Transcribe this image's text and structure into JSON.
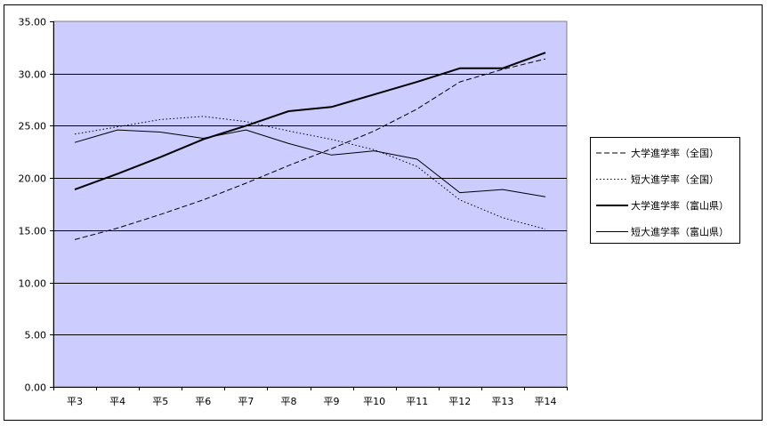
{
  "chart_data": {
    "type": "line",
    "title": "",
    "xlabel": "",
    "ylabel": "",
    "categories": [
      "平3",
      "平4",
      "平5",
      "平6",
      "平7",
      "平8",
      "平9",
      "平10",
      "平11",
      "平12",
      "平13",
      "平14"
    ],
    "ylim": [
      0,
      35
    ],
    "yticks": [
      "0.00",
      "5.00",
      "10.00",
      "15.00",
      "20.00",
      "25.00",
      "30.00",
      "35.00"
    ],
    "grid": true,
    "legend_position": "right",
    "plot_background": "#ccccff",
    "series": [
      {
        "name": "大学進学率（全国）",
        "style": "dashed",
        "width": 1,
        "color": "#000000",
        "values": [
          14.1,
          15.2,
          16.5,
          17.9,
          19.5,
          21.2,
          22.8,
          24.5,
          26.6,
          29.2,
          30.4,
          31.4
        ]
      },
      {
        "name": "短大進学率（全国）",
        "style": "dotted",
        "width": 1,
        "color": "#000000",
        "values": [
          24.2,
          24.9,
          25.6,
          25.9,
          25.4,
          24.5,
          23.7,
          22.7,
          21.1,
          17.9,
          16.2,
          15.1
        ]
      },
      {
        "name": "大学進学率（富山県）",
        "style": "solid",
        "width": 2,
        "color": "#000000",
        "values": [
          18.9,
          20.4,
          22.0,
          23.7,
          25.0,
          26.4,
          26.8,
          28.0,
          29.2,
          30.5,
          30.5,
          32.0
        ]
      },
      {
        "name": "短大進学率（富山県）",
        "style": "solid",
        "width": 1,
        "color": "#000000",
        "values": [
          23.4,
          24.6,
          24.4,
          23.8,
          24.6,
          23.3,
          22.2,
          22.6,
          21.8,
          18.6,
          18.9,
          18.2
        ]
      }
    ]
  }
}
